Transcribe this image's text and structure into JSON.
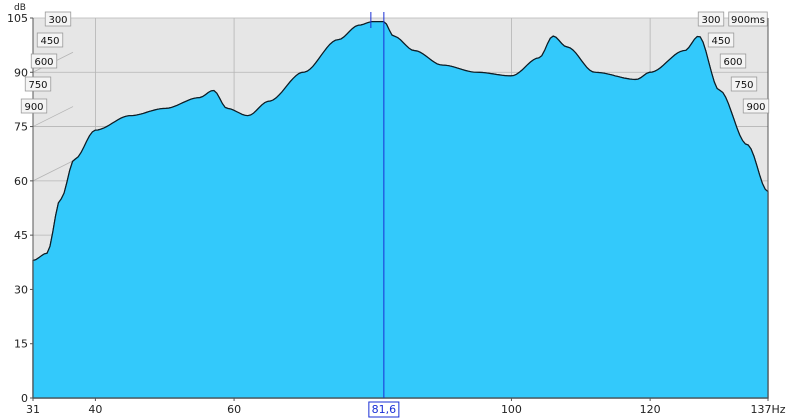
{
  "chart_data": {
    "type": "waterfall",
    "yunit": "dB",
    "xunit": "Hz",
    "ylim": [
      0,
      105
    ],
    "xlim": [
      31,
      137
    ],
    "y_ticks": [
      0,
      15,
      30,
      45,
      60,
      75,
      90,
      105
    ],
    "x_ticks": [
      {
        "value": 31,
        "label": "31"
      },
      {
        "value": 40,
        "label": "40"
      },
      {
        "value": 60,
        "label": "60"
      },
      {
        "value": 100,
        "label": "100"
      },
      {
        "value": 120,
        "label": "120"
      },
      {
        "value": 137,
        "label": "137Hz"
      }
    ],
    "time_labels_left": [
      "300",
      "450",
      "600",
      "750",
      "900"
    ],
    "time_labels_right": [
      "300",
      "900ms",
      "450",
      "600",
      "750",
      "900"
    ],
    "cursor": {
      "value": 81.6,
      "label": "81,6"
    },
    "front_curve": {
      "x": [
        31,
        33,
        35,
        37,
        40,
        45,
        50,
        55,
        57,
        59,
        62,
        65,
        70,
        75,
        78,
        80,
        81.6,
        83,
        86,
        90,
        95,
        100,
        104,
        106,
        108,
        112,
        118,
        120,
        125,
        127,
        130,
        134,
        137
      ],
      "y": [
        38,
        40,
        55,
        66,
        74,
        78,
        80,
        83,
        85,
        80,
        78,
        82,
        90,
        99,
        103,
        104,
        104,
        100,
        96,
        92,
        90,
        89,
        94,
        100,
        97,
        90,
        88,
        90,
        96,
        100,
        85,
        70,
        57
      ]
    },
    "slices": 56,
    "colors": {
      "fill": "#33c9fb",
      "line": "#0d1d26",
      "background": "#e6e6e6",
      "grid": "#b5b5b5",
      "cursor": "#1a2fd6"
    }
  }
}
